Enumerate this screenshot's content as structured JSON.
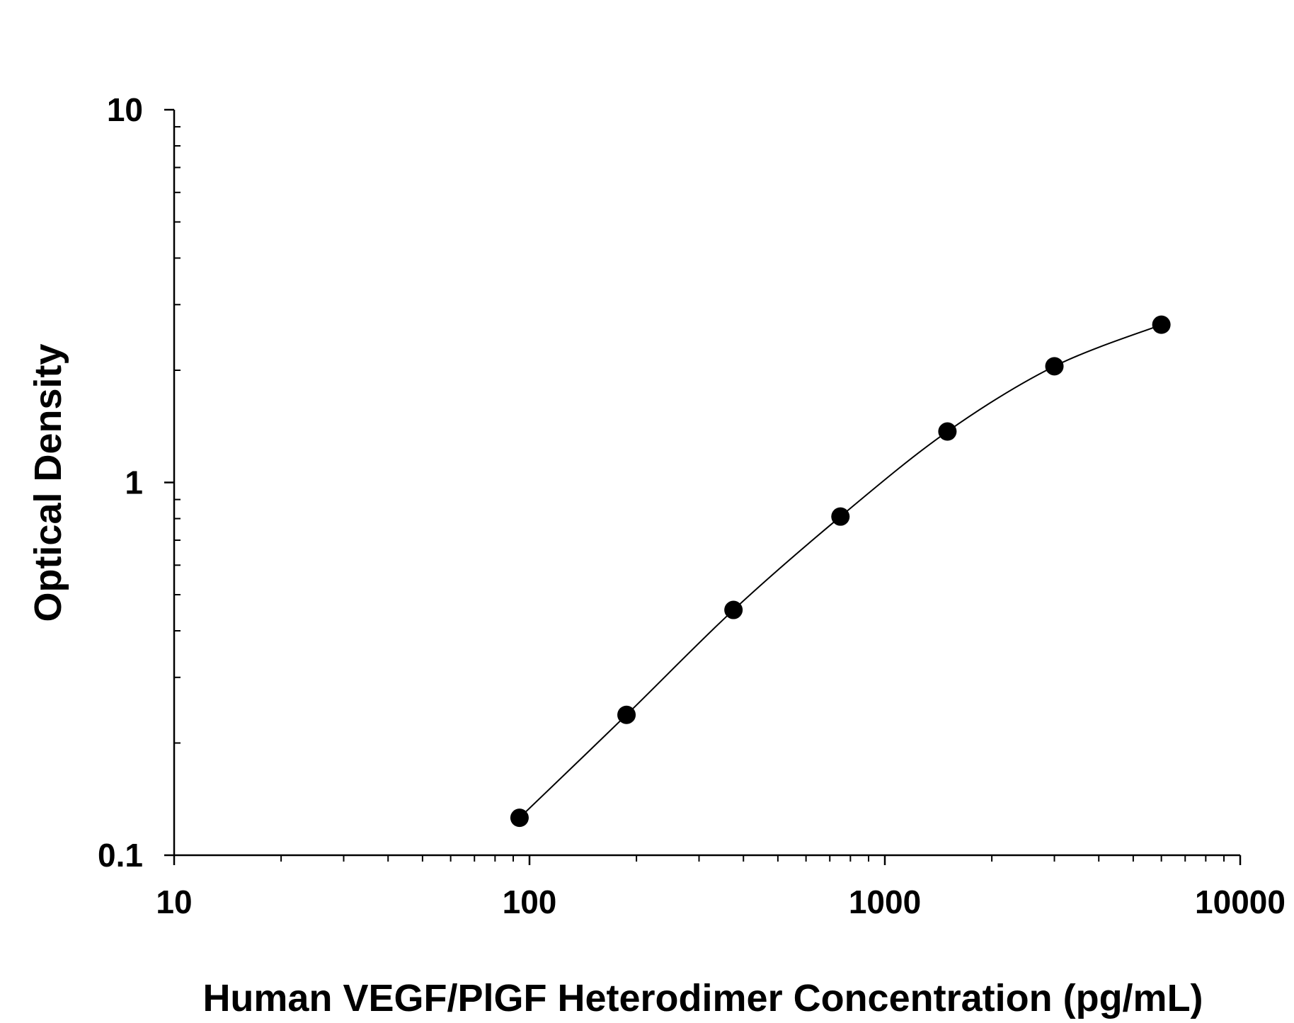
{
  "chart_data": {
    "type": "scatter",
    "title": "",
    "xlabel": "Human VEGF/PlGF Heterodimer Concentration (pg/mL)",
    "ylabel": "Optical Density",
    "xscale": "log",
    "yscale": "log",
    "xlim": [
      10,
      10000
    ],
    "ylim": [
      0.1,
      10
    ],
    "x_tick_labels": [
      "10",
      "100",
      "1000",
      "10000"
    ],
    "y_tick_labels": [
      "0.1",
      "1",
      "10"
    ],
    "grid": false,
    "legend": "none",
    "marker_color": "#000000",
    "line_color": "#000000",
    "series": [
      {
        "x": [
          93.75,
          187.5,
          375,
          750,
          1500,
          3000,
          6000
        ],
        "y": [
          0.126,
          0.238,
          0.455,
          0.81,
          1.37,
          2.05,
          2.65
        ],
        "fit": "4-parameter logistic curve"
      }
    ]
  }
}
